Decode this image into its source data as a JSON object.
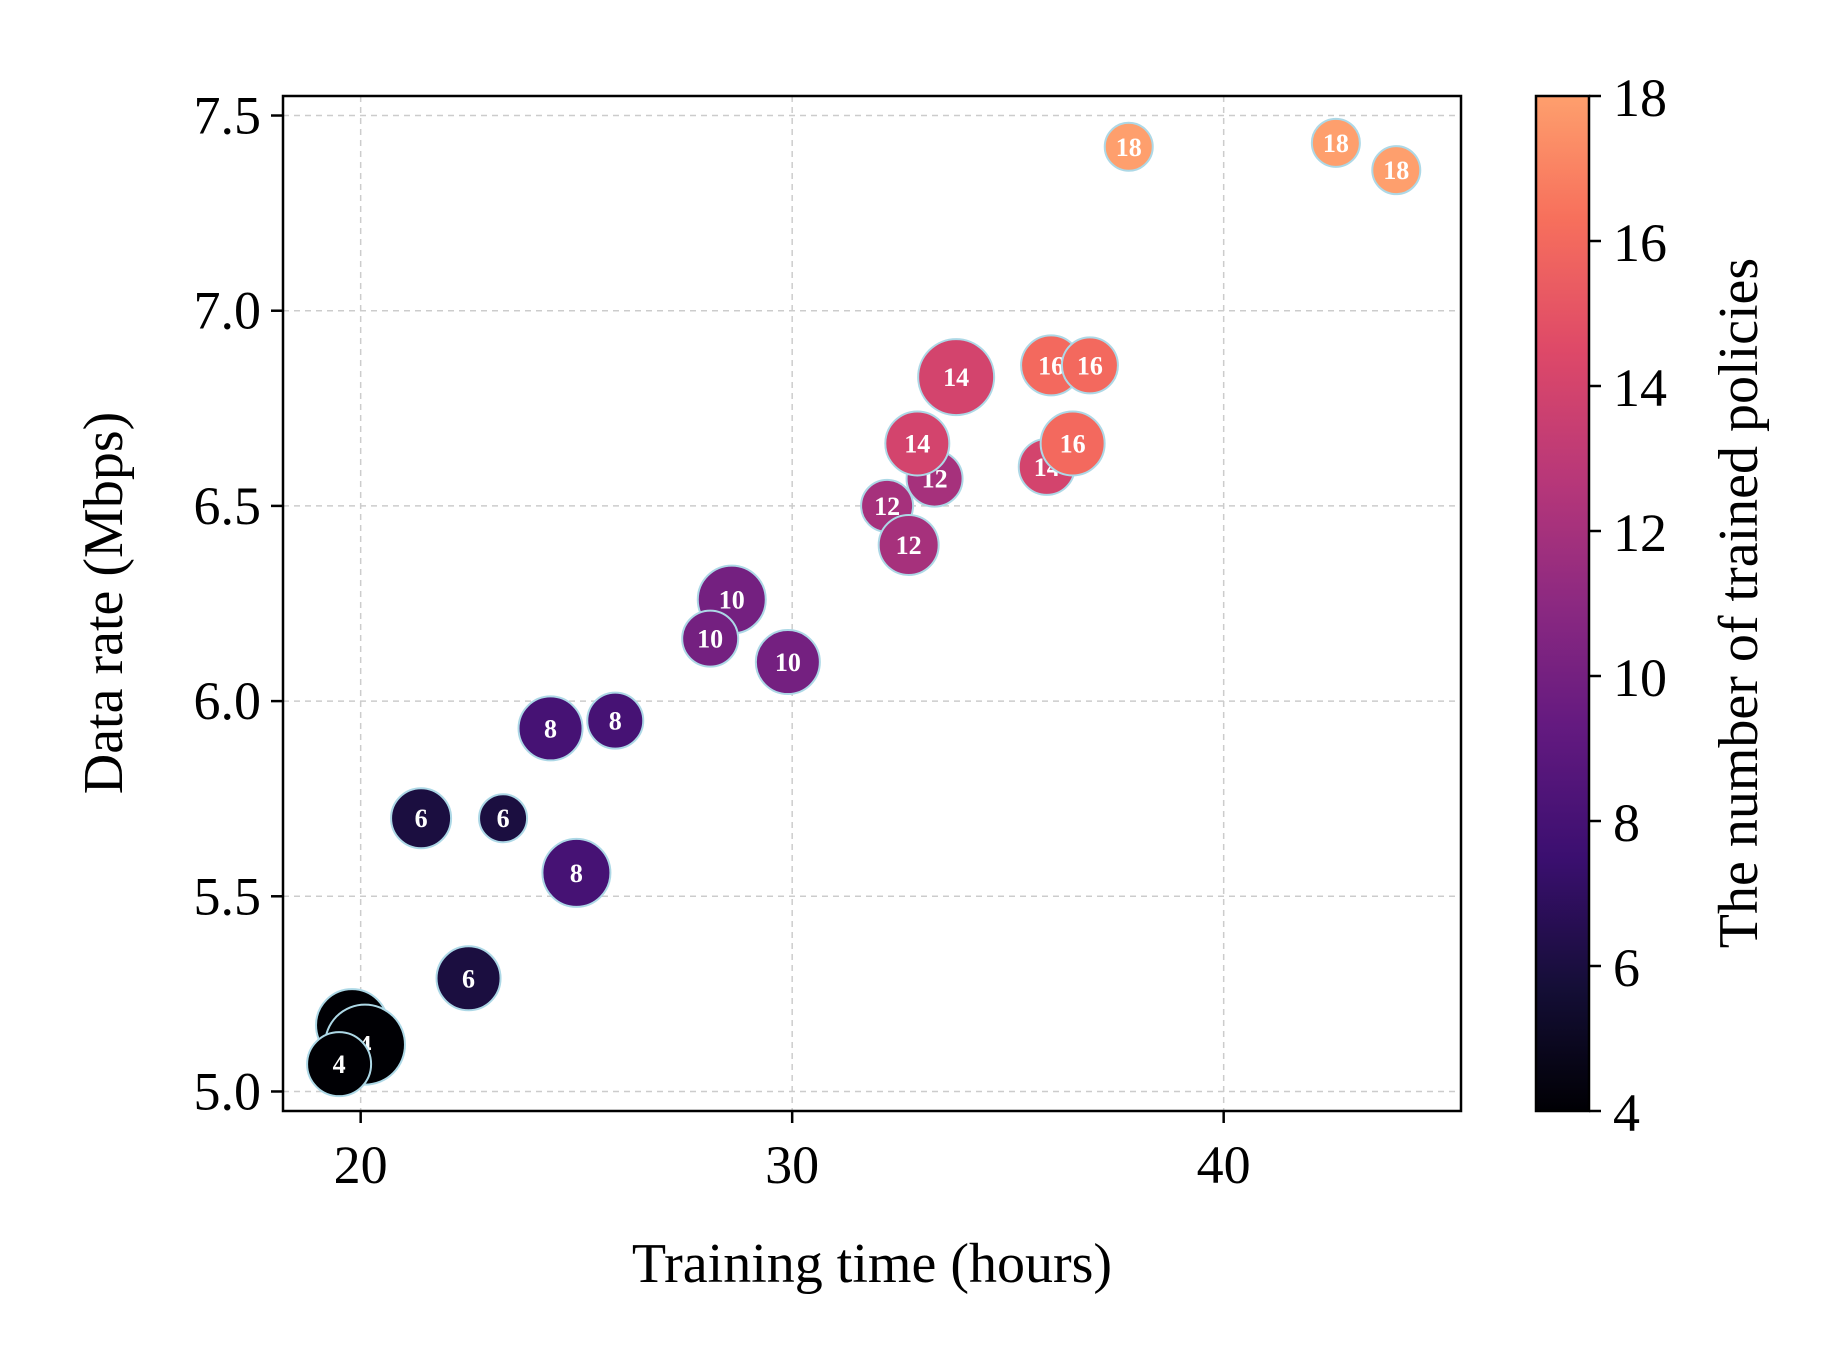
{
  "chart_data": {
    "type": "scatter",
    "title": "",
    "xlabel": "Training time (hours)",
    "ylabel": "Data rate (Mbps)",
    "xlim": [
      18.2,
      45.5
    ],
    "ylim": [
      4.95,
      7.55
    ],
    "xticks": [
      20,
      30,
      40
    ],
    "yticks": [
      5.0,
      5.5,
      6.0,
      6.5,
      7.0,
      7.5
    ],
    "xtick_labels": [
      "20",
      "30",
      "40"
    ],
    "ytick_labels": [
      "5.0",
      "5.5",
      "6.0",
      "6.5",
      "7.0",
      "7.5"
    ],
    "grid": true,
    "colorbar": {
      "label": "The number of trained policies",
      "range": [
        4,
        18
      ],
      "ticks": [
        4,
        6,
        8,
        10,
        12,
        14,
        16,
        18
      ],
      "tick_labels": [
        "4",
        "6",
        "8",
        "10",
        "12",
        "14",
        "16",
        "18"
      ],
      "colormap": "magma"
    },
    "points": [
      {
        "x": 19.8,
        "y": 5.17,
        "policies": 4,
        "size": 36,
        "label": "4"
      },
      {
        "x": 20.1,
        "y": 5.12,
        "policies": 4,
        "size": 40,
        "label": "4"
      },
      {
        "x": 19.5,
        "y": 5.07,
        "policies": 4,
        "size": 32,
        "label": "4"
      },
      {
        "x": 21.4,
        "y": 5.7,
        "policies": 6,
        "size": 30,
        "label": "6"
      },
      {
        "x": 23.3,
        "y": 5.7,
        "policies": 6,
        "size": 24,
        "label": "6"
      },
      {
        "x": 22.5,
        "y": 5.29,
        "policies": 6,
        "size": 32,
        "label": "6"
      },
      {
        "x": 24.4,
        "y": 5.93,
        "policies": 8,
        "size": 32,
        "label": "8"
      },
      {
        "x": 25.9,
        "y": 5.95,
        "policies": 8,
        "size": 28,
        "label": "8"
      },
      {
        "x": 25.0,
        "y": 5.56,
        "policies": 8,
        "size": 34,
        "label": "8"
      },
      {
        "x": 28.6,
        "y": 6.26,
        "policies": 10,
        "size": 34,
        "label": "10"
      },
      {
        "x": 28.1,
        "y": 6.16,
        "policies": 10,
        "size": 28,
        "label": "10"
      },
      {
        "x": 29.9,
        "y": 6.1,
        "policies": 10,
        "size": 32,
        "label": "10"
      },
      {
        "x": 32.2,
        "y": 6.5,
        "policies": 12,
        "size": 26,
        "label": "12"
      },
      {
        "x": 33.3,
        "y": 6.57,
        "policies": 12,
        "size": 28,
        "label": "12"
      },
      {
        "x": 32.7,
        "y": 6.4,
        "policies": 12,
        "size": 30,
        "label": "12"
      },
      {
        "x": 33.8,
        "y": 6.83,
        "policies": 14,
        "size": 38,
        "label": "14"
      },
      {
        "x": 32.9,
        "y": 6.66,
        "policies": 14,
        "size": 32,
        "label": "14"
      },
      {
        "x": 35.9,
        "y": 6.6,
        "policies": 14,
        "size": 28,
        "label": "14"
      },
      {
        "x": 36.0,
        "y": 6.86,
        "policies": 16,
        "size": 30,
        "label": "16"
      },
      {
        "x": 36.9,
        "y": 6.86,
        "policies": 16,
        "size": 28,
        "label": "16"
      },
      {
        "x": 36.5,
        "y": 6.66,
        "policies": 16,
        "size": 32,
        "label": "16"
      },
      {
        "x": 37.8,
        "y": 7.42,
        "policies": 18,
        "size": 24,
        "label": "18"
      },
      {
        "x": 42.6,
        "y": 7.43,
        "policies": 18,
        "size": 24,
        "label": "18"
      },
      {
        "x": 44.0,
        "y": 7.36,
        "policies": 18,
        "size": 24,
        "label": "18"
      }
    ]
  }
}
